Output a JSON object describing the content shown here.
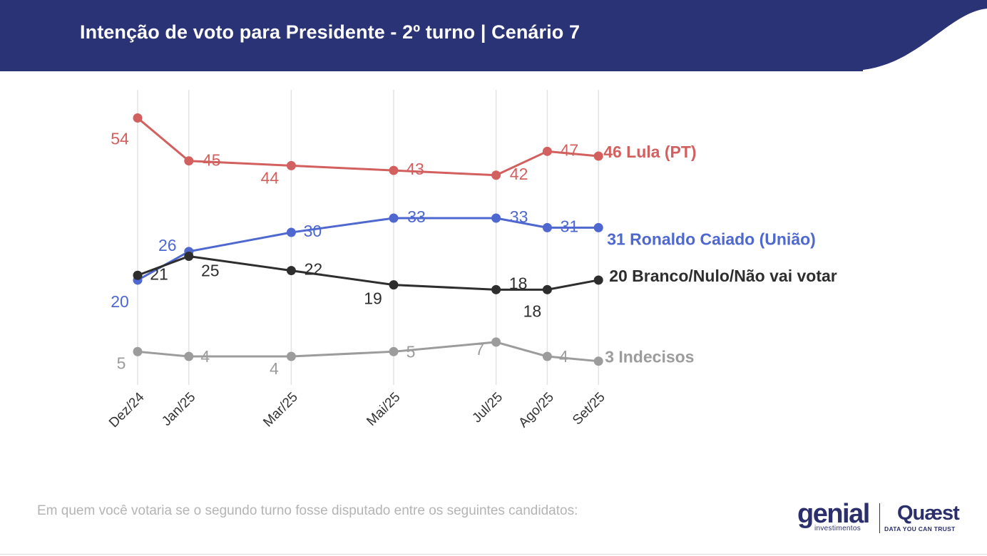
{
  "header": {
    "title": "Intenção de voto para Presidente - 2º turno | Cenário 7",
    "background_color": "#2b3377"
  },
  "footnote": "Em quem você votaria se o segundo turno fosse disputado entre os seguintes candidatos:",
  "logos": {
    "genial": "genial",
    "genial_sub": "investimentos",
    "quaest": "Quæst",
    "quaest_sub": "DATA YOU CAN TRUST"
  },
  "chart_data": {
    "type": "line",
    "title": "",
    "xlabel": "",
    "ylabel": "",
    "x": [
      "Dez/24",
      "Jan/25",
      "Mar/25",
      "Mai/25",
      "Jul/25",
      "Ago/25",
      "Set/25"
    ],
    "x_months": [
      0,
      1,
      3,
      5,
      7,
      8,
      9
    ],
    "ylim": [
      0,
      58
    ],
    "grid": "vertical",
    "series": [
      {
        "name": "Lula (PT)",
        "end_label": "46 Lula (PT)",
        "color": "#d2605f",
        "values": [
          54,
          45,
          44,
          43,
          42,
          47,
          46
        ],
        "labels": [
          "54",
          "45",
          "44",
          "43",
          "42",
          "47",
          ""
        ]
      },
      {
        "name": "Ronaldo Caiado (União)",
        "end_label": "31 Ronaldo Caiado (União)",
        "color": "#4e68cf",
        "values": [
          20,
          26,
          30,
          33,
          33,
          31,
          31
        ],
        "labels": [
          "20",
          "26",
          "30",
          "33",
          "33",
          "31",
          ""
        ]
      },
      {
        "name": "Branco/Nulo/Não vai votar",
        "end_label": "20 Branco/Nulo/Não vai votar",
        "color": "#2e2e2e",
        "values": [
          21,
          25,
          22,
          19,
          18,
          18,
          20
        ],
        "labels": [
          "21",
          "25",
          "22",
          "19",
          "18",
          "18",
          ""
        ]
      },
      {
        "name": "Indecisos",
        "end_label": "3 Indecisos",
        "color": "#9c9c9c",
        "values": [
          5,
          4,
          4,
          5,
          7,
          4,
          3
        ],
        "labels": [
          "5",
          "4",
          "4",
          "5",
          "7",
          "4",
          ""
        ]
      }
    ]
  }
}
